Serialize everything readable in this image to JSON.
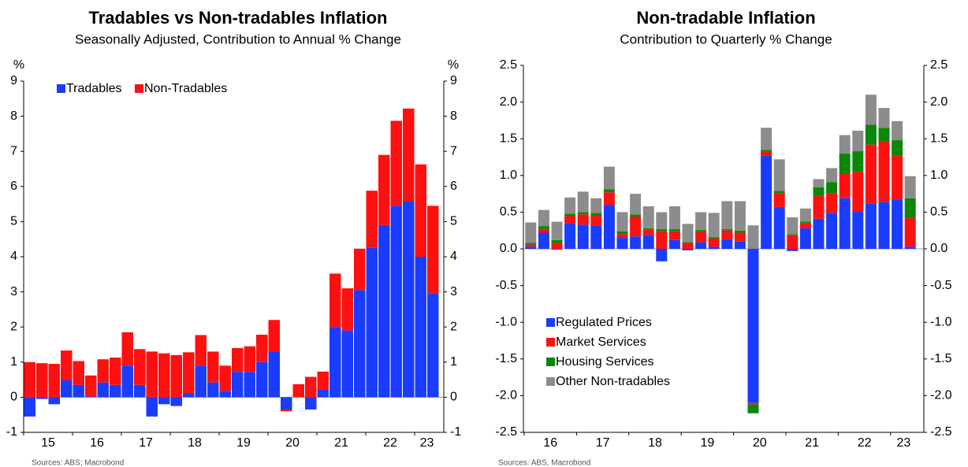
{
  "chart_data": [
    {
      "type": "bar",
      "stacked": true,
      "title": "Tradables vs Non-tradables Inflation",
      "subtitle": "Seasonally Adjusted, Contribution to Annual % Change",
      "y_unit": "%",
      "y2_unit": "%",
      "source": "Sources: ABS; Macrobond",
      "legend": "top-left",
      "legend_orientation": "horizontal",
      "categories": [
        null,
        "15",
        null,
        null,
        null,
        "16",
        null,
        null,
        null,
        "17",
        null,
        null,
        null,
        "18",
        null,
        null,
        null,
        "19",
        null,
        null,
        null,
        "20",
        null,
        null,
        null,
        "21",
        null,
        null,
        null,
        "22",
        null,
        null,
        "23",
        null
      ],
      "ylim": [
        -1,
        9
      ],
      "yticks": [
        -1,
        0,
        1,
        2,
        3,
        4,
        5,
        6,
        7,
        8,
        9
      ],
      "series": [
        {
          "name": "Tradables",
          "color": "#1a3cff",
          "values": [
            -0.55,
            -0.05,
            -0.2,
            0.48,
            0.35,
            0.02,
            0.42,
            0.35,
            0.9,
            0.35,
            -0.55,
            -0.2,
            -0.25,
            0.12,
            0.9,
            0.42,
            0.18,
            0.72,
            0.72,
            1.0,
            1.3,
            -0.35,
            0.0,
            -0.35,
            0.22,
            2.0,
            1.9,
            3.05,
            4.25,
            4.9,
            5.45,
            5.57,
            4.0,
            2.95
          ]
        },
        {
          "name": "Non-Tradables",
          "color": "#ff1010",
          "values": [
            1.0,
            0.97,
            0.95,
            0.85,
            0.68,
            0.6,
            0.66,
            0.78,
            0.95,
            1.02,
            1.3,
            1.25,
            1.2,
            1.16,
            0.87,
            0.88,
            0.72,
            0.68,
            0.73,
            0.78,
            0.9,
            -0.05,
            0.37,
            0.58,
            0.51,
            1.52,
            1.2,
            1.18,
            1.63,
            2.0,
            2.42,
            2.65,
            2.63,
            2.5
          ]
        }
      ]
    },
    {
      "type": "bar",
      "stacked": true,
      "title": "Non-tradable Inflation",
      "subtitle": "Contribution to Quarterly % Change",
      "source": "Sources: ABS, Macrobond",
      "legend": "bottom-left",
      "legend_orientation": "vertical",
      "categories": [
        null,
        "16",
        null,
        null,
        null,
        "17",
        null,
        null,
        null,
        "18",
        null,
        null,
        null,
        "19",
        null,
        null,
        null,
        "20",
        null,
        null,
        null,
        "21",
        null,
        null,
        null,
        "22",
        null,
        null,
        "23",
        null
      ],
      "ylim": [
        -2.5,
        2.5
      ],
      "yticks": [
        -2.5,
        {
          "value": -2,
          "label": "-2.0"
        },
        -1.5,
        {
          "value": -1,
          "label": "-1.0"
        },
        -0.5,
        {
          "value": 0,
          "label": "0.0"
        },
        0.5,
        {
          "value": 1,
          "label": "1.0"
        },
        1.5,
        {
          "value": 2,
          "label": "2.0"
        },
        2.5
      ],
      "series": [
        {
          "name": "Regulated Prices",
          "color": "#1a3cff",
          "values": [
            0.03,
            0.22,
            -0.01,
            0.35,
            0.33,
            0.32,
            0.6,
            0.15,
            0.17,
            0.19,
            -0.17,
            0.12,
            -0.02,
            0.09,
            0.03,
            0.13,
            0.1,
            -2.1,
            1.27,
            0.57,
            -0.03,
            0.28,
            0.41,
            0.49,
            0.69,
            0.51,
            0.62,
            0.64,
            0.67,
            0.03
          ]
        },
        {
          "name": "Market Services",
          "color": "#ff1010",
          "values": [
            0.03,
            0.05,
            0.08,
            0.1,
            0.14,
            0.13,
            0.17,
            0.05,
            0.27,
            0.07,
            0.24,
            0.12,
            0.08,
            0.15,
            0.11,
            0.12,
            0.12,
            -0.02,
            0.06,
            0.19,
            0.19,
            0.07,
            0.31,
            0.27,
            0.33,
            0.54,
            0.8,
            0.82,
            0.6,
            0.39
          ]
        },
        {
          "name": "Housing Services",
          "color": "#0a870a",
          "values": [
            0.02,
            0.04,
            0.04,
            0.03,
            0.03,
            0.04,
            0.04,
            0.04,
            0.03,
            0.02,
            0.03,
            0.03,
            0.01,
            0.02,
            0.02,
            0.02,
            0.03,
            -0.12,
            0.02,
            0.03,
            0.01,
            0.02,
            0.12,
            0.15,
            0.28,
            0.28,
            0.27,
            0.19,
            0.21,
            0.27
          ]
        },
        {
          "name": "Other Non-tradables",
          "color": "#8c8c8c",
          "values": [
            0.28,
            0.22,
            0.25,
            0.22,
            0.28,
            0.2,
            0.31,
            0.26,
            0.28,
            0.3,
            0.23,
            0.31,
            0.25,
            0.24,
            0.33,
            0.38,
            0.4,
            0.32,
            0.3,
            0.43,
            0.23,
            0.18,
            0.11,
            0.19,
            0.25,
            0.28,
            0.41,
            0.27,
            0.26,
            0.3
          ]
        }
      ]
    }
  ]
}
